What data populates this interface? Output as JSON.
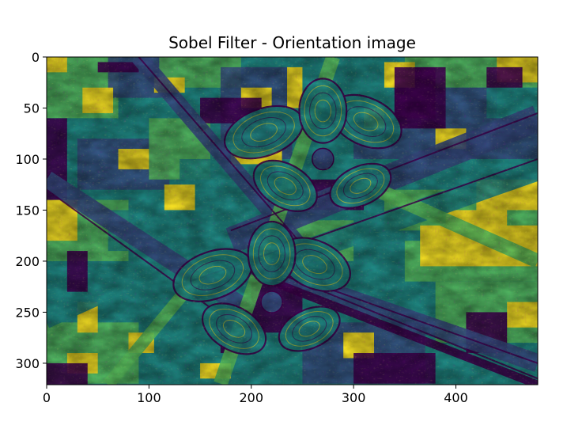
{
  "chart_data": {
    "type": "heatmap",
    "title": "Sobel Filter - Orientation image",
    "xlabel": "",
    "ylabel": "",
    "image_width": 480,
    "image_height": 321,
    "xlim": [
      0,
      480
    ],
    "ylim": [
      321,
      0
    ],
    "x_ticks": [
      0,
      100,
      200,
      300,
      400
    ],
    "y_ticks": [
      0,
      50,
      100,
      150,
      200,
      250,
      300
    ],
    "colormap": "viridis",
    "colormap_stops": [
      "#440154",
      "#3b528b",
      "#21918c",
      "#5ec962",
      "#fde725"
    ],
    "description_features": [
      {
        "kind": "flower",
        "cx": 270,
        "cy": 100
      },
      {
        "kind": "flower",
        "cx": 220,
        "cy": 240
      }
    ]
  }
}
